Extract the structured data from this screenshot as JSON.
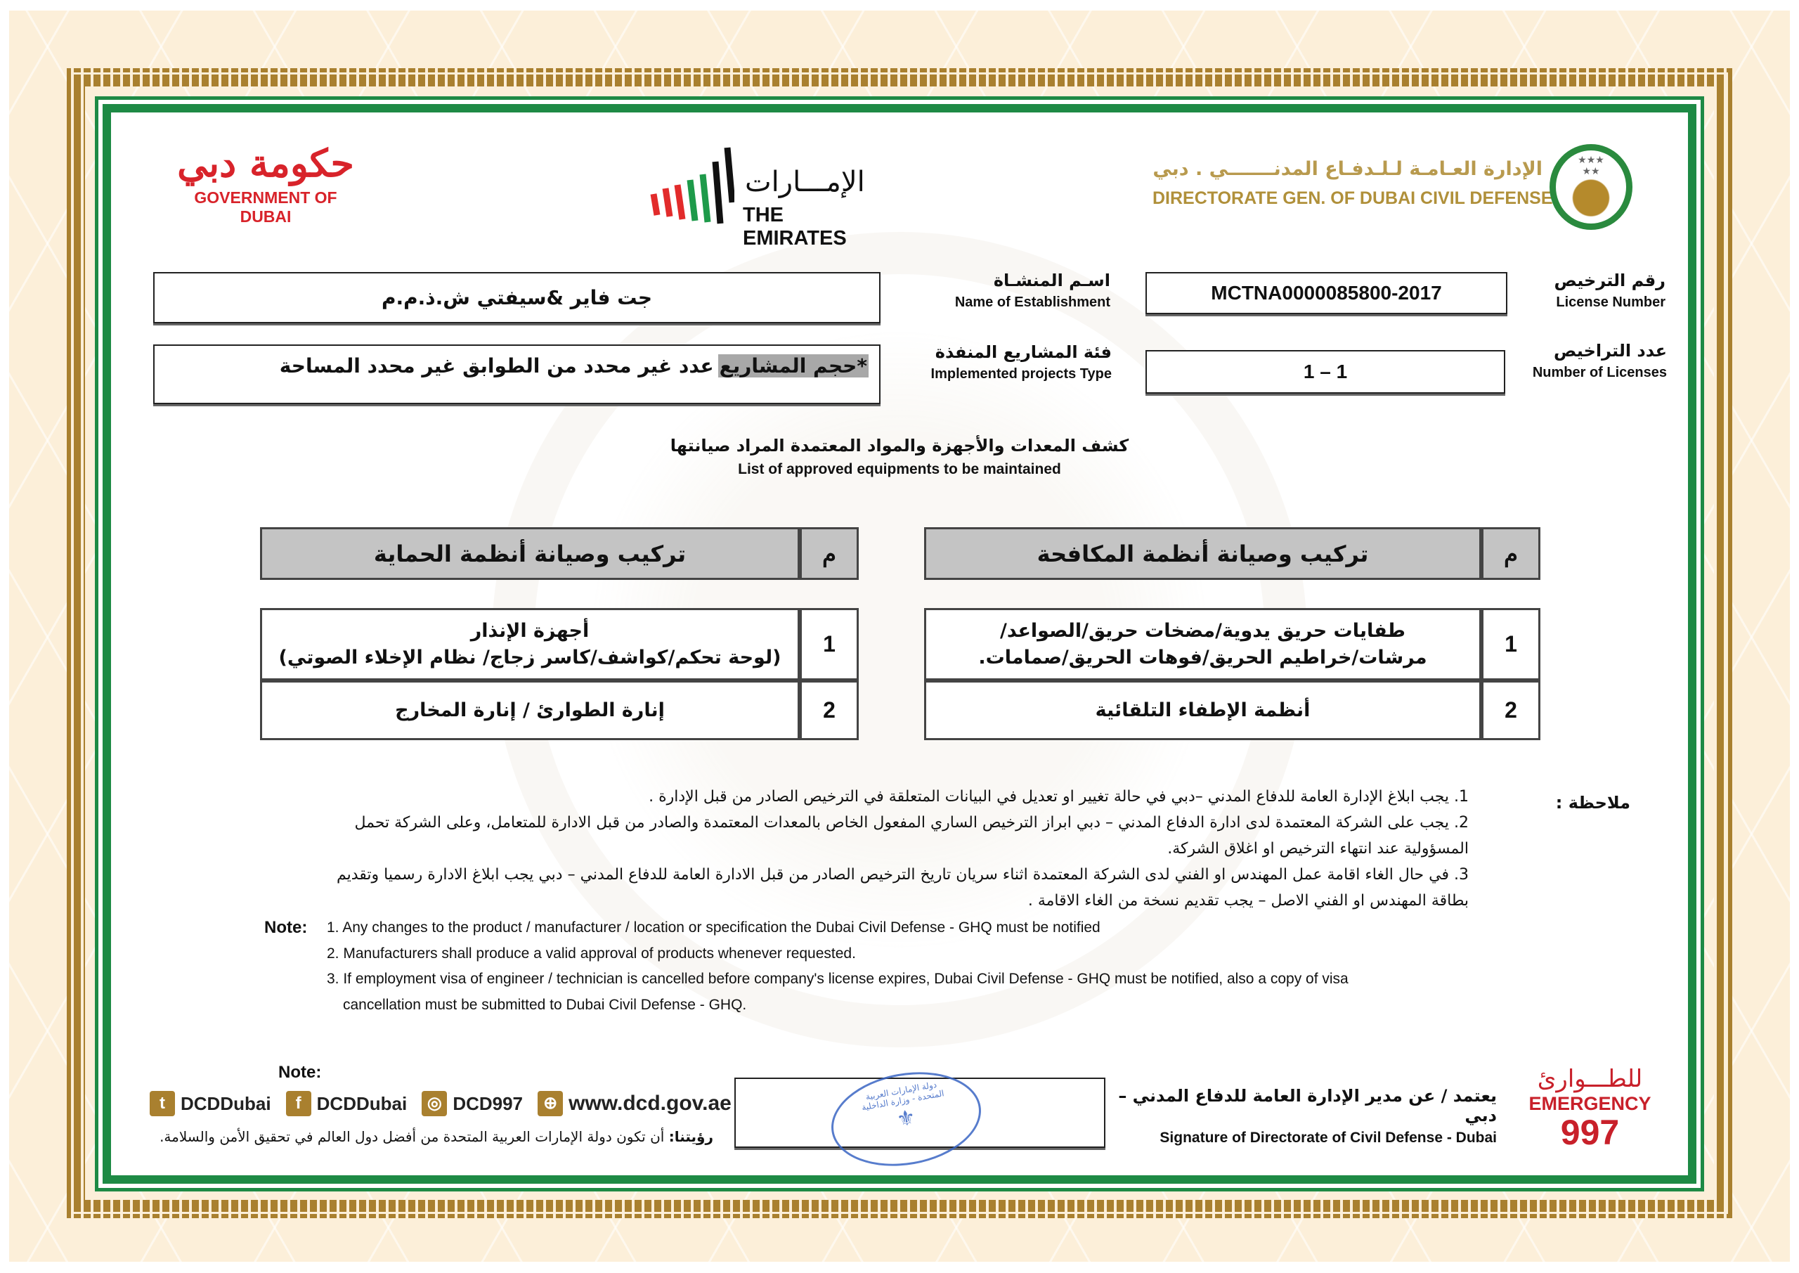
{
  "colors": {
    "gold": "#a9802f",
    "green": "#1e8a45",
    "red": "#c8202a",
    "cream": "#fcefd9",
    "stamp": "#3a66c4"
  },
  "header": {
    "gov_dubai_ar": "حكومة دبي",
    "gov_dubai_en": "GOVERNMENT OF DUBAI",
    "emirates_ar": "الإمـــارات",
    "emirates_en": "THE EMIRATES",
    "dcd_ar": "الإدارة العـامـة لـلـدفـاع المدنـــــــي . دبي",
    "dcd_en": "DIRECTORATE GEN. OF DUBAI CIVIL DEFENSE"
  },
  "fields": {
    "license_number": {
      "label_ar": "رقم الترخيص",
      "label_en": "License Number",
      "value": "MCTNA0000085800-2017"
    },
    "number_of_licenses": {
      "label_ar": "عدد التراخيص",
      "label_en": "Number of Licenses",
      "value": "1 – 1"
    },
    "establishment": {
      "label_ar": "اسـم المنشـاة",
      "label_en": "Name of Establishment",
      "value": "جت فاير &سيفتي ش.ذ.م.م"
    },
    "projects_type": {
      "label_ar": "فئة المشاريع المنفذة",
      "label_en": "Implemented projects Type",
      "value_highlight": "*حجم المشاريع",
      "value_rest": "عدد غير محدد من الطوابق غير محدد المساحة"
    }
  },
  "section": {
    "title_ar": "كشف المعدات والأجهزة والمواد المعتمدة المراد صيانتها",
    "title_en": "List of approved equipments to be maintained"
  },
  "tables": {
    "firefighting": {
      "col_no": "م",
      "header": "تركيب وصيانة أنظمة المكافحة",
      "rows": [
        {
          "no": "1",
          "line1": "طفايات حريق يدوية/مضخات حريق/الصواعد/",
          "line2": "مرشات/خراطيم الحريق/فوهات الحريق/صمامات."
        },
        {
          "no": "2",
          "line1": "أنظمة الإطفاء التلقائية",
          "line2": ""
        }
      ]
    },
    "protection": {
      "col_no": "م",
      "header": "تركيب وصيانة أنظمة الحماية",
      "rows": [
        {
          "no": "1",
          "line1": "أجهزة الإنذار",
          "line2": "(لوحة تحكم/كواشف/كاسر زجاج/ نظام الإخلاء الصوتي)"
        },
        {
          "no": "2",
          "line1": "إنارة الطوارئ / إنارة المخارج",
          "line2": ""
        }
      ]
    }
  },
  "notes_ar": {
    "label": "ملاحظة :",
    "items": [
      "1. يجب ابلاغ الإدارة العامة للدفاع المدني –دبي في حالة تغيير او تعديل في البيانات المتعلقة في الترخيص الصادر من قبل الإدارة .",
      "2. يجب على الشركة المعتمدة لدى ادارة الدفاع المدني – دبي ابراز الترخيص الساري المفعول الخاص بالمعدات المعتمدة والصادر من قبل الادارة للمتعامل، وعلى الشركة تحمل المسؤولية عند انتهاء الترخيص او اغلاق الشركة.",
      "3. في حال الغاء اقامة عمل المهندس او الفني لدى الشركة المعتمدة اثناء سريان تاريخ الترخيص الصادر من قبل الادارة العامة للدفاع المدني – دبي يجب ابلاغ الادارة رسميا وتقديم بطاقة المهندس او الفني الاصل – يجب تقديم نسخة من الغاء الاقامة ."
    ]
  },
  "notes_en": {
    "label": "Note:",
    "items": [
      "1. Any changes to the product / manufacturer / location or specification the Dubai Civil Defense - GHQ must be notified",
      "2. Manufacturers shall produce a valid approval of products whenever requested.",
      "3. If employment visa of engineer / technician is cancelled before company's license expires, Dubai Civil Defense - GHQ must be notified, also a copy of visa cancellation must be submitted to Dubai Civil Defense - GHQ."
    ]
  },
  "footer": {
    "stray_note": "Note:",
    "social": [
      {
        "icon": "twitter-icon",
        "glyph": "t",
        "label": "DCDDubai"
      },
      {
        "icon": "facebook-icon",
        "glyph": "f",
        "label": "DCDDubai"
      },
      {
        "icon": "instagram-icon",
        "glyph": "◎",
        "label": "DCD997"
      },
      {
        "icon": "globe-icon",
        "glyph": "⊕",
        "label": "www.dcd.gov.ae"
      }
    ],
    "vision_label": "رؤيتنا:",
    "vision_text": "أن تكون دولة الإمارات العربية المتحدة من أفضل دول العالم في تحقيق الأمن والسلامة.",
    "stamp_text": "دولة الإمارات العربية المتحدة - وزارة الداخلية",
    "signature_ar": "يعتمد / عن مدير الإدارة العامة للدفاع المدني – دبي",
    "signature_en": "Signature of Directorate of Civil Defense - Dubai",
    "emergency_ar": "للطـــوارئ",
    "emergency_en": "EMERGENCY",
    "emergency_number": "997"
  }
}
